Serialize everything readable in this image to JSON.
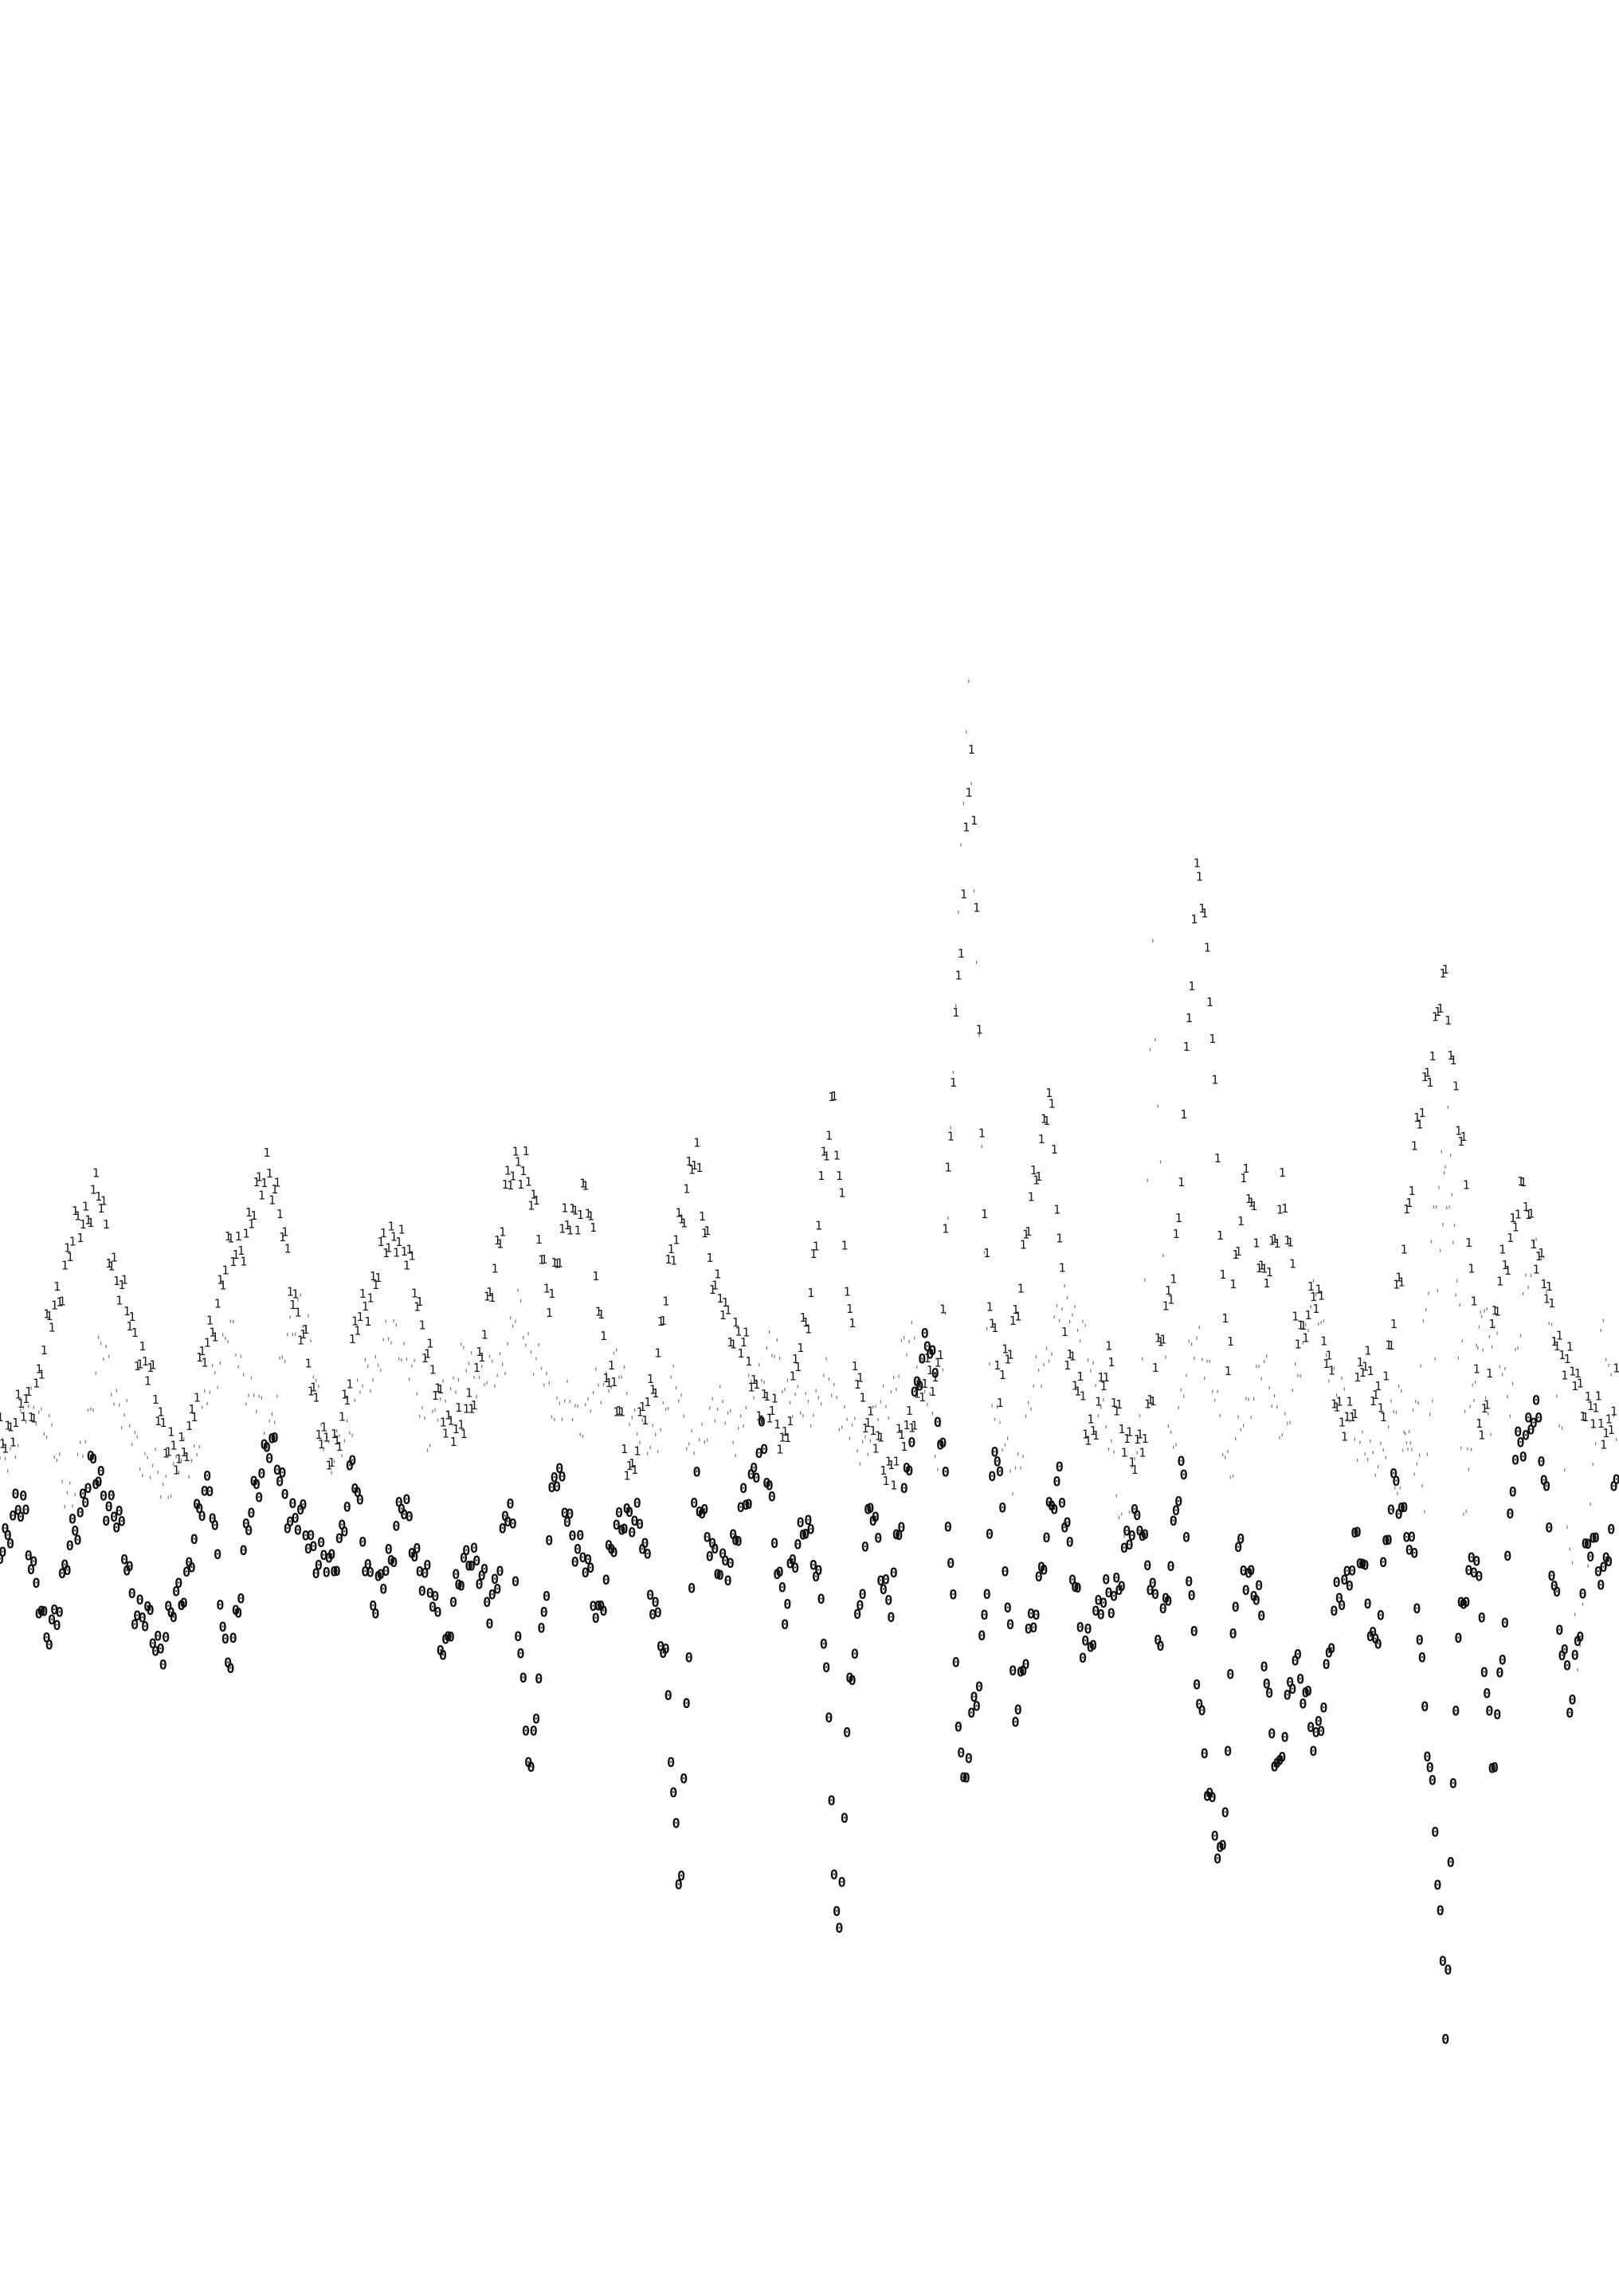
{
  "chart_data": {
    "type": "line",
    "title": "",
    "xlabel": "",
    "ylabel": "",
    "markers": "glyphs",
    "x_range": [
      0,
      1000
    ],
    "y_range": [
      -30,
      55
    ],
    "grid": false,
    "legend": "none",
    "colors": {
      "background": "#ffffff",
      "series_light": "#7a7a7a",
      "series_medium": "#1a1a1a",
      "series_dark": "#111111",
      "accent": "#8a7a66"
    },
    "series": [
      {
        "marker_glyph": "'",
        "color_key": "series_light",
        "anchors": [
          [
            0,
            4
          ],
          [
            22,
            8
          ],
          [
            45,
            2
          ],
          [
            62,
            11
          ],
          [
            80,
            6
          ],
          [
            100,
            3
          ],
          [
            120,
            5
          ],
          [
            140,
            12
          ],
          [
            165,
            6
          ],
          [
            185,
            14
          ],
          [
            205,
            4
          ],
          [
            225,
            9
          ],
          [
            245,
            12
          ],
          [
            265,
            6
          ],
          [
            285,
            10
          ],
          [
            305,
            9
          ],
          [
            320,
            13
          ],
          [
            340,
            8
          ],
          [
            360,
            7
          ],
          [
            380,
            10
          ],
          [
            400,
            5
          ],
          [
            418,
            9
          ],
          [
            430,
            4
          ],
          [
            440,
            8
          ],
          [
            455,
            6
          ],
          [
            475,
            11
          ],
          [
            495,
            7
          ],
          [
            512,
            9
          ],
          [
            530,
            5
          ],
          [
            548,
            8
          ],
          [
            565,
            12
          ],
          [
            580,
            4
          ],
          [
            598,
            50
          ],
          [
            610,
            10
          ],
          [
            625,
            3
          ],
          [
            640,
            9
          ],
          [
            660,
            14
          ],
          [
            680,
            8
          ],
          [
            695,
            0
          ],
          [
            705,
            7
          ],
          [
            712,
            34
          ],
          [
            722,
            5
          ],
          [
            740,
            12
          ],
          [
            760,
            4
          ],
          [
            778,
            10
          ],
          [
            795,
            6
          ],
          [
            810,
            14
          ],
          [
            828,
            8
          ],
          [
            848,
            4
          ],
          [
            865,
            8
          ],
          [
            880,
            2
          ],
          [
            895,
            24
          ],
          [
            905,
            0
          ],
          [
            915,
            14
          ],
          [
            932,
            8
          ],
          [
            950,
            18
          ],
          [
            965,
            6
          ],
          [
            975,
            -8
          ],
          [
            990,
            12
          ],
          [
            1000,
            6
          ]
        ]
      },
      {
        "marker_glyph": "1",
        "color_key": "series_medium",
        "anchors": [
          [
            0,
            6
          ],
          [
            20,
            8
          ],
          [
            35,
            14
          ],
          [
            48,
            18
          ],
          [
            60,
            20
          ],
          [
            75,
            14
          ],
          [
            90,
            10
          ],
          [
            110,
            4
          ],
          [
            125,
            10
          ],
          [
            140,
            16
          ],
          [
            155,
            18
          ],
          [
            165,
            22
          ],
          [
            178,
            16
          ],
          [
            190,
            10
          ],
          [
            205,
            4
          ],
          [
            220,
            12
          ],
          [
            235,
            16
          ],
          [
            245,
            18
          ],
          [
            258,
            14
          ],
          [
            270,
            8
          ],
          [
            285,
            6
          ],
          [
            300,
            12
          ],
          [
            312,
            20
          ],
          [
            325,
            22
          ],
          [
            338,
            14
          ],
          [
            350,
            18
          ],
          [
            362,
            20
          ],
          [
            375,
            10
          ],
          [
            390,
            4
          ],
          [
            405,
            10
          ],
          [
            418,
            18
          ],
          [
            430,
            22
          ],
          [
            442,
            14
          ],
          [
            455,
            12
          ],
          [
            470,
            8
          ],
          [
            485,
            6
          ],
          [
            500,
            14
          ],
          [
            515,
            26
          ],
          [
            525,
            12
          ],
          [
            538,
            6
          ],
          [
            552,
            4
          ],
          [
            565,
            8
          ],
          [
            580,
            10
          ],
          [
            592,
            32
          ],
          [
            600,
            46
          ],
          [
            608,
            18
          ],
          [
            618,
            8
          ],
          [
            632,
            16
          ],
          [
            648,
            26
          ],
          [
            658,
            12
          ],
          [
            672,
            6
          ],
          [
            685,
            10
          ],
          [
            700,
            4
          ],
          [
            715,
            10
          ],
          [
            728,
            18
          ],
          [
            740,
            40
          ],
          [
            748,
            30
          ],
          [
            758,
            10
          ],
          [
            770,
            22
          ],
          [
            780,
            14
          ],
          [
            792,
            20
          ],
          [
            802,
            12
          ],
          [
            815,
            14
          ],
          [
            828,
            6
          ],
          [
            842,
            10
          ],
          [
            855,
            8
          ],
          [
            868,
            18
          ],
          [
            880,
            26
          ],
          [
            892,
            32
          ],
          [
            904,
            22
          ],
          [
            915,
            6
          ],
          [
            928,
            16
          ],
          [
            942,
            20
          ],
          [
            955,
            14
          ],
          [
            968,
            10
          ],
          [
            980,
            8
          ],
          [
            992,
            6
          ],
          [
            1000,
            10
          ]
        ]
      },
      {
        "marker_glyph": "0",
        "color_key": "series_dark",
        "anchors": [
          [
            0,
            0
          ],
          [
            15,
            2
          ],
          [
            28,
            -6
          ],
          [
            40,
            -2
          ],
          [
            55,
            4
          ],
          [
            70,
            2
          ],
          [
            85,
            -4
          ],
          [
            100,
            -6
          ],
          [
            115,
            -2
          ],
          [
            130,
            4
          ],
          [
            140,
            -8
          ],
          [
            152,
            0
          ],
          [
            165,
            6
          ],
          [
            178,
            2
          ],
          [
            192,
            0
          ],
          [
            205,
            -2
          ],
          [
            218,
            4
          ],
          [
            232,
            -4
          ],
          [
            248,
            2
          ],
          [
            262,
            -2
          ],
          [
            275,
            -6
          ],
          [
            290,
            0
          ],
          [
            302,
            -4
          ],
          [
            315,
            2
          ],
          [
            328,
            -14
          ],
          [
            342,
            4
          ],
          [
            356,
            0
          ],
          [
            370,
            -4
          ],
          [
            385,
            2
          ],
          [
            398,
            0
          ],
          [
            412,
            -8
          ],
          [
            420,
            -20
          ],
          [
            430,
            4
          ],
          [
            442,
            -2
          ],
          [
            455,
            0
          ],
          [
            470,
            6
          ],
          [
            485,
            -4
          ],
          [
            498,
            2
          ],
          [
            510,
            -6
          ],
          [
            518,
            -24
          ],
          [
            525,
            -8
          ],
          [
            538,
            2
          ],
          [
            550,
            -4
          ],
          [
            565,
            8
          ],
          [
            575,
            12
          ],
          [
            585,
            2
          ],
          [
            595,
            -14
          ],
          [
            605,
            -8
          ],
          [
            615,
            6
          ],
          [
            628,
            -10
          ],
          [
            642,
            -2
          ],
          [
            655,
            4
          ],
          [
            668,
            -6
          ],
          [
            680,
            -4
          ],
          [
            692,
            -2
          ],
          [
            704,
            2
          ],
          [
            716,
            -6
          ],
          [
            730,
            4
          ],
          [
            745,
            -14
          ],
          [
            755,
            -18
          ],
          [
            765,
            0
          ],
          [
            778,
            -4
          ],
          [
            790,
            -14
          ],
          [
            800,
            -6
          ],
          [
            812,
            -12
          ],
          [
            825,
            -4
          ],
          [
            838,
            0
          ],
          [
            850,
            -6
          ],
          [
            862,
            4
          ],
          [
            874,
            -2
          ],
          [
            886,
            -16
          ],
          [
            893,
            -28
          ],
          [
            900,
            -6
          ],
          [
            912,
            0
          ],
          [
            922,
            -14
          ],
          [
            935,
            4
          ],
          [
            948,
            8
          ],
          [
            960,
            -2
          ],
          [
            970,
            -10
          ],
          [
            980,
            0
          ],
          [
            990,
            -2
          ],
          [
            1000,
            4
          ]
        ]
      },
      {
        "marker_glyph": "'",
        "color_key": "accent",
        "anchors": [
          [
            860,
            2
          ],
          [
            872,
            6
          ],
          [
            882,
            14
          ],
          [
            890,
            22
          ],
          [
            898,
            18
          ],
          [
            906,
            6
          ],
          [
            914,
            12
          ],
          [
            922,
            4
          ]
        ]
      }
    ]
  }
}
